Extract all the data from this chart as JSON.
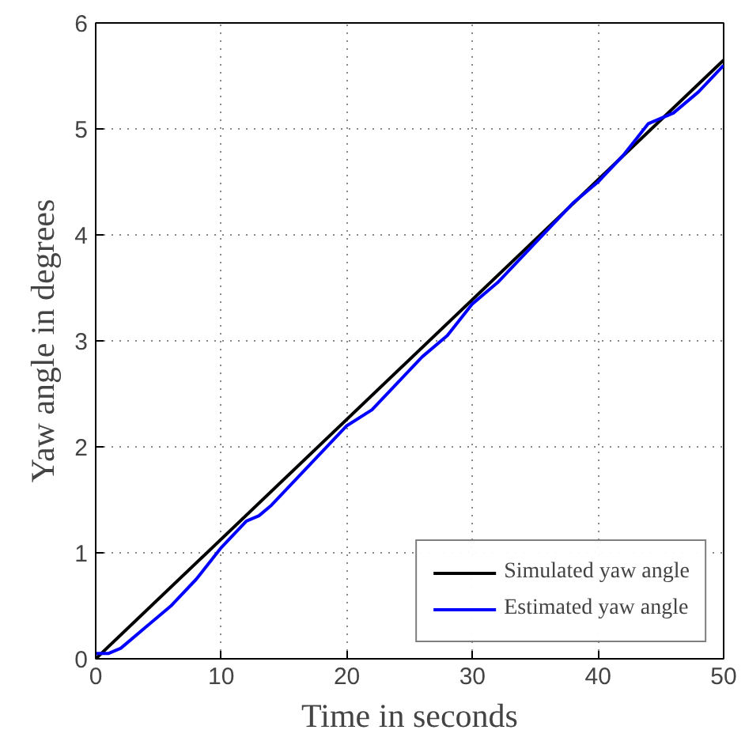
{
  "chart_data": {
    "type": "line",
    "xlabel": "Time in seconds",
    "ylabel": "Yaw angle in degrees",
    "xlim": [
      0,
      50
    ],
    "ylim": [
      0,
      6
    ],
    "xticks": [
      0,
      10,
      20,
      30,
      40,
      50
    ],
    "yticks": [
      0,
      1,
      2,
      3,
      4,
      5,
      6
    ],
    "grid": true,
    "legend": "bottom right",
    "line_style": "solid",
    "series": [
      {
        "name": "Simulated yaw angle",
        "color": "#000000",
        "x": [
          0,
          50
        ],
        "values": [
          0,
          5.65
        ]
      },
      {
        "name": "Estimated yaw angle",
        "color": "#0000ff",
        "x": [
          0,
          1,
          2,
          4,
          6,
          8,
          10,
          12,
          13,
          14,
          16,
          18,
          20,
          22,
          24,
          26,
          28,
          30,
          32,
          34,
          36,
          38,
          40,
          42,
          43,
          44,
          45,
          46,
          48,
          50
        ],
        "values": [
          0.05,
          0.05,
          0.1,
          0.3,
          0.5,
          0.75,
          1.05,
          1.3,
          1.35,
          1.45,
          1.7,
          1.95,
          2.2,
          2.35,
          2.6,
          2.85,
          3.05,
          3.35,
          3.55,
          3.8,
          4.05,
          4.3,
          4.5,
          4.75,
          4.9,
          5.05,
          5.1,
          5.15,
          5.35,
          5.6
        ]
      }
    ]
  }
}
